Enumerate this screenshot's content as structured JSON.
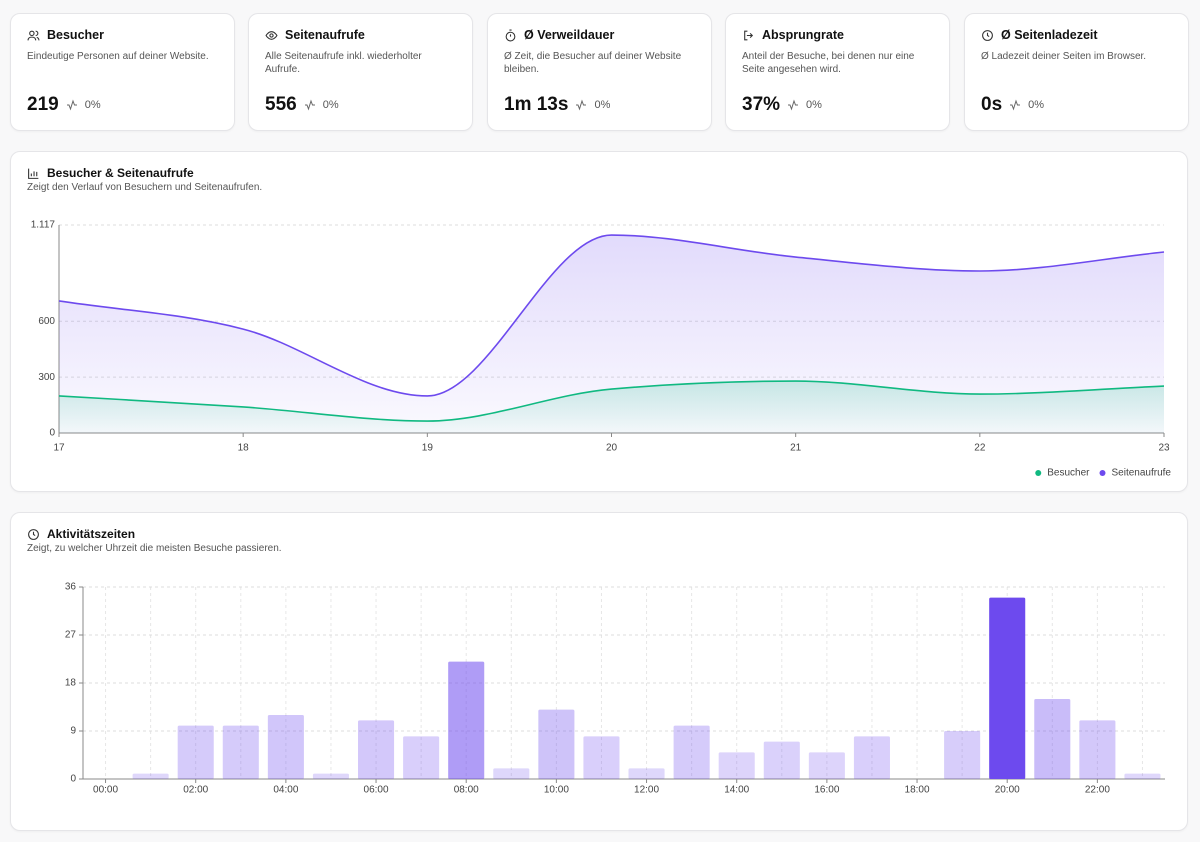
{
  "cards": [
    {
      "title": "Besucher",
      "description": "Eindeutige Personen auf deiner Website.",
      "value": "219",
      "change": "0%"
    },
    {
      "title": "Seitenaufrufe",
      "description": "Alle Seitenaufrufe inkl. wiederholter Aufrufe.",
      "value": "556",
      "change": "0%"
    },
    {
      "title": "Ø Verweildauer",
      "description": "Ø Zeit, die Besucher auf deiner Website bleiben.",
      "value": "1m 13s",
      "change": "0%"
    },
    {
      "title": "Absprungrate",
      "description": "Anteil der Besuche, bei denen nur eine Seite angesehen wird.",
      "value": "37%",
      "change": "0%"
    },
    {
      "title": "Ø Seitenladezeit",
      "description": "Ø Ladezeit deiner Seiten im Browser.",
      "value": "0s",
      "change": "0%"
    }
  ],
  "chart_data": [
    {
      "type": "area",
      "title": "Besucher & Seitenaufrufe",
      "subtitle": "Zeigt den Verlauf von Besuchern und Seitenaufrufen.",
      "x": [
        17,
        18,
        19,
        20,
        21,
        22,
        23
      ],
      "series": [
        {
          "name": "Besucher",
          "color": "#10b981",
          "values": [
            199,
            140,
            64,
            236,
            279,
            209,
            252
          ]
        },
        {
          "name": "Seitenaufrufe",
          "color": "#6d4aee",
          "values": [
            709,
            558,
            199,
            1063,
            945,
            870,
            972
          ]
        }
      ],
      "xlim": [
        17,
        23
      ],
      "xticks": [
        17,
        18,
        19,
        20,
        21,
        22,
        23
      ],
      "ylim": [
        0,
        1117
      ],
      "yticks": [
        0,
        300,
        600,
        {
          "value": 1117,
          "label": "1.117"
        }
      ],
      "grid": true,
      "legend": "bottom-right"
    },
    {
      "type": "bar",
      "title": "Aktivitätszeiten",
      "subtitle": "Zeigt, zu welcher Uhrzeit die meisten Besuche passieren.",
      "categories": [
        "00:00",
        null,
        "02:00",
        null,
        "04:00",
        null,
        "06:00",
        null,
        "08:00",
        null,
        "10:00",
        null,
        "12:00",
        null,
        "14:00",
        null,
        "16:00",
        null,
        "18:00",
        null,
        "20:00",
        null,
        "22:00",
        null
      ],
      "values": [
        0,
        1,
        10,
        10,
        12,
        1,
        11,
        8,
        22,
        2,
        13,
        8,
        2,
        10,
        5,
        7,
        5,
        8,
        0,
        9,
        34,
        15,
        11,
        1
      ],
      "color": "#6d4aee",
      "ylim": [
        0,
        36
      ],
      "yticks": [
        0,
        9,
        18,
        27,
        36
      ],
      "grid": true
    }
  ]
}
